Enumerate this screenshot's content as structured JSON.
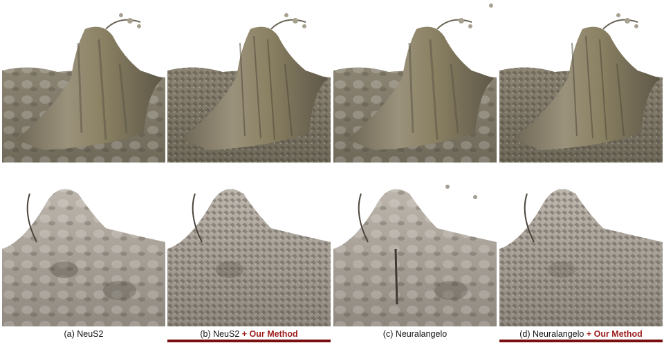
{
  "captions": [
    {
      "label": "(a) NeuS2",
      "suffix": ""
    },
    {
      "label": "(b) NeuS2",
      "suffix": "+ Our Method"
    },
    {
      "label": "(c) Neuralangelo",
      "suffix": ""
    },
    {
      "label": "(d) Neuralangelo",
      "suffix": "+ Our Method"
    }
  ],
  "colors": {
    "stump_tan": "#8a8060",
    "stump_gray": "#9a9288",
    "foliage_gray": "#b4aea6",
    "shadow": "#4a443c",
    "accent_red": "#9c1c1c",
    "underline": "#7a0f0f"
  },
  "icons": {
    "top_row_subject": "tree-stump-mesh",
    "bottom_row_subject": "ivy-foliage-mesh"
  }
}
